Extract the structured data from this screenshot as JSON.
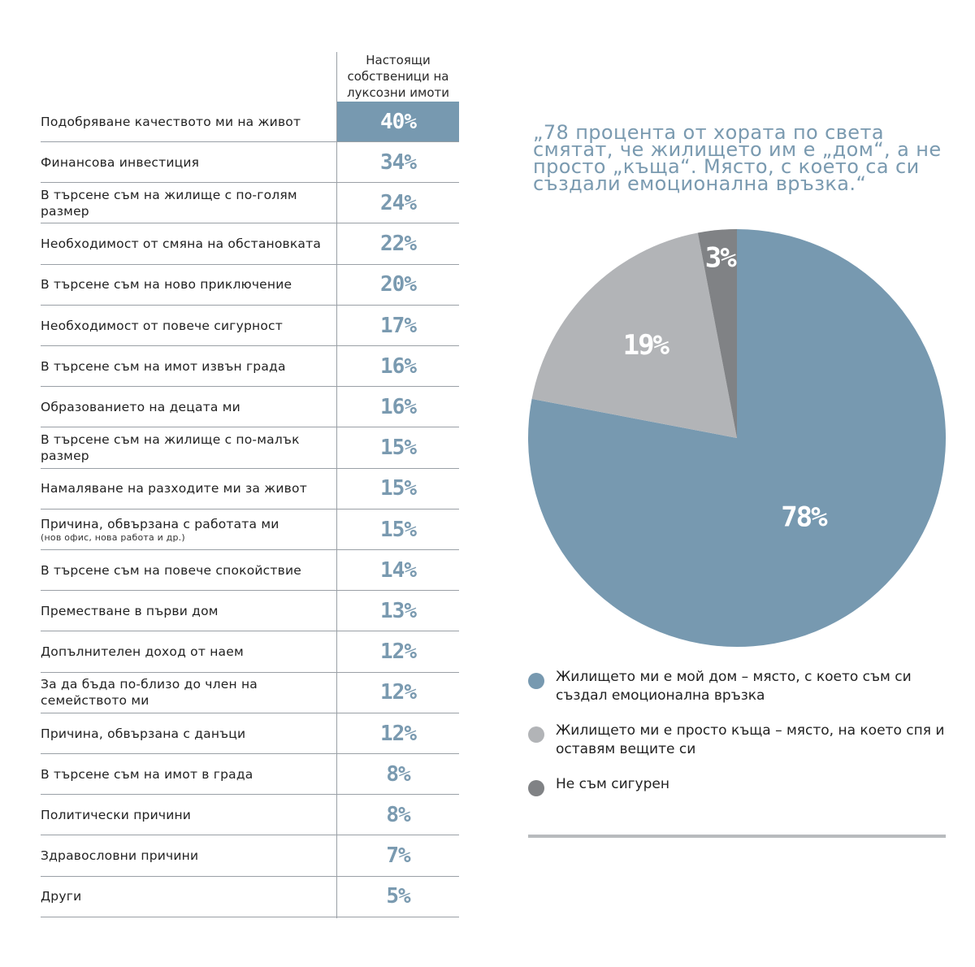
{
  "table": {
    "column_header": "Настоящи собственици на луксозни имоти",
    "rows": [
      {
        "label": "Подобряване качеството ми на живот",
        "note": "",
        "value": "40%"
      },
      {
        "label": "Финансова инвестиция",
        "note": "",
        "value": "34%"
      },
      {
        "label": "В търсене съм на жилище с по-голям размер",
        "note": "",
        "value": "24%"
      },
      {
        "label": "Необходимост от смяна на обстановката",
        "note": "",
        "value": "22%"
      },
      {
        "label": "В търсене съм на ново приключение",
        "note": "",
        "value": "20%"
      },
      {
        "label": "Необходимост от повече сигурност",
        "note": "",
        "value": "17%"
      },
      {
        "label": "В търсене съм на имот извън града",
        "note": "",
        "value": "16%"
      },
      {
        "label": "Образованието на децата ми",
        "note": "",
        "value": "16%"
      },
      {
        "label": "В търсене съм на жилище с по-малък размер",
        "note": "",
        "value": "15%"
      },
      {
        "label": "Намаляване на разходите ми за живот",
        "note": "",
        "value": "15%"
      },
      {
        "label": "Причина, обвързана с работата ми",
        "note": "(нов офис, нова работа и др.)",
        "value": "15%"
      },
      {
        "label": "В търсене съм на повече спокойствие",
        "note": "",
        "value": "14%"
      },
      {
        "label": "Преместване в първи дом",
        "note": "",
        "value": "13%"
      },
      {
        "label": "Допълнителен доход от наем",
        "note": "",
        "value": "12%"
      },
      {
        "label": "За да бъда по-близо до член на семейството ми",
        "note": "",
        "value": "12%"
      },
      {
        "label": "Причина, обвързана с данъци",
        "note": "",
        "value": "12%"
      },
      {
        "label": "В търсене съм на имот в града",
        "note": "",
        "value": "8%"
      },
      {
        "label": "Политически причини",
        "note": "",
        "value": "8%"
      },
      {
        "label": "Здравословни причини",
        "note": "",
        "value": "7%"
      },
      {
        "label": "Други",
        "note": "",
        "value": "5%"
      }
    ]
  },
  "quote": "„78 процента от хората по света смятат, че жилището им е „дом“, а не просто „къща“. Място, с което са си създали емоционална връзка.“",
  "chart_data": {
    "type": "pie",
    "title": "",
    "slices": [
      {
        "label": "Жилището ми е мой дом – място, с което съм си създал емоционална връзка",
        "value": 78,
        "display": "78%",
        "color": "#7799b0"
      },
      {
        "label": "Жилището ми е просто къща – място, на което спя и оставям вещите си",
        "value": 19,
        "display": "19%",
        "color": "#b2b4b7"
      },
      {
        "label": "Не съм сигурен",
        "value": 3,
        "display": "3%",
        "color": "#808285"
      }
    ],
    "start": "12 o'clock",
    "direction": "clockwise"
  },
  "colors": {
    "accent": "#7799b0",
    "value_text": "#7a9ab0",
    "grid_line": "#9aa0a6"
  }
}
